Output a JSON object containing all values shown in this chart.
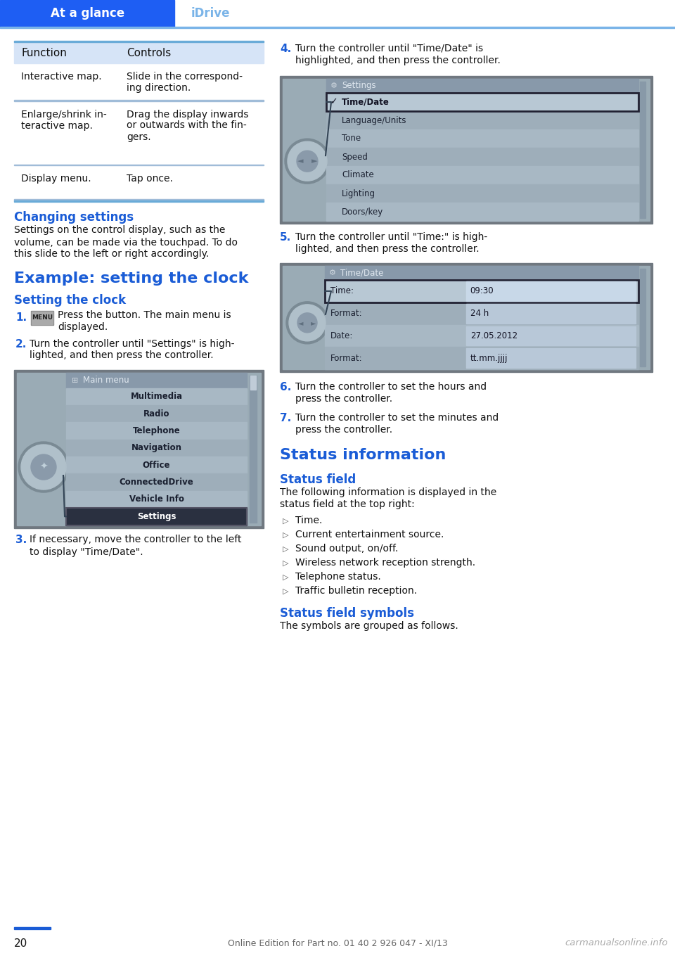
{
  "page_width": 9.6,
  "page_height": 13.62,
  "dpi": 100,
  "bg_color": "#ffffff",
  "header_bg": "#1e5ef3",
  "header_text_left": "At a glance",
  "header_text_right": "iDrive",
  "header_text_right_color": "#7ab4e8",
  "header_line_color": "#7ab4e8",
  "table_header_bg": "#d6e4f7",
  "table_col1_header": "Function",
  "table_col2_header": "Controls",
  "table_rows": [
    [
      "Interactive map.",
      "Slide in the correspond-\ning direction."
    ],
    [
      "Enlarge/shrink in-\nteractive map.",
      "Drag the display inwards\nor outwards with the fin-\ngers."
    ],
    [
      "Display menu.",
      "Tap once."
    ]
  ],
  "table_line_color": "#a0bcd8",
  "table_border_top_color": "#6aabd8",
  "table_border_bot_color": "#6aabd8",
  "section1_title": "Changing settings",
  "section1_title_color": "#1a5cd6",
  "section1_text": "Settings on the control display, such as the\nvolume, can be made via the touchpad. To do\nthis slide to the left or right accordingly.",
  "section2_title": "Example: setting the clock",
  "section2_title_color": "#1a5cd6",
  "section3_title": "Setting the clock",
  "section3_title_color": "#1a5cd6",
  "step_num_color": "#1a5cd6",
  "step1_text": "Press the button. The main menu is\ndisplayed.",
  "step2_text": "Turn the controller until \"Settings\" is high-\nlighted, and then press the controller.",
  "step3_text": "If necessary, move the controller to the left\nto display \"Time/Date\".",
  "step4_text": "Turn the controller until \"Time/Date\" is\nhighlighted, and then press the controller.",
  "step5_text": "Turn the controller until \"Time:\" is high-\nlighted, and then press the controller.",
  "step6_text": "Turn the controller to set the hours and\npress the controller.",
  "step7_text": "Turn the controller to set the minutes and\npress the controller.",
  "status_title": "Status information",
  "status_title_color": "#1a5cd6",
  "status_field_title": "Status field",
  "status_field_title_color": "#1a5cd6",
  "status_field_text": "The following information is displayed in the\nstatus field at the top right:",
  "status_bullets": [
    "Time.",
    "Current entertainment source.",
    "Sound output, on/off.",
    "Wireless network reception strength.",
    "Telephone status.",
    "Traffic bulletin reception."
  ],
  "status_symbols_title": "Status field symbols",
  "status_symbols_title_color": "#1a5cd6",
  "status_symbols_text": "The symbols are grouped as follows.",
  "footer_line_color": "#1a5cd6",
  "footer_page": "20",
  "footer_text": "Online Edition for Part no. 01 40 2 926 047 - XI/13",
  "footer_watermark": "carmanualsonline.info",
  "screen_outer_bg": "#8a9aaa",
  "screen_inner_bg": "#a8b8c4",
  "screen_header_bg": "#8a9aaa",
  "screen_item_bg": "#b0c0cc",
  "screen_selected_bg": "#000033",
  "screen_selected_outline": "#333333",
  "screen1_header": "Main menu",
  "screen1_items": [
    "Multimedia",
    "Radio",
    "Telephone",
    "Navigation",
    "Office",
    "ConnectedDrive",
    "Vehicle Info",
    "Settings"
  ],
  "screen1_selected": "Settings",
  "screen2_header": "Settings",
  "screen2_items": [
    "Time/Date",
    "Language/Units",
    "Tone",
    "Speed",
    "Climate",
    "Lighting",
    "Doors/key"
  ],
  "screen2_selected": "Time/Date",
  "screen3_header": "Time/Date",
  "screen3_fields": [
    [
      "Time:",
      "09:30"
    ],
    [
      "Format:",
      "24 h"
    ],
    [
      "Date:",
      "27.05.2012"
    ],
    [
      "Format:",
      "tt.mm.jjjj"
    ]
  ],
  "screen3_selected_row": 0
}
